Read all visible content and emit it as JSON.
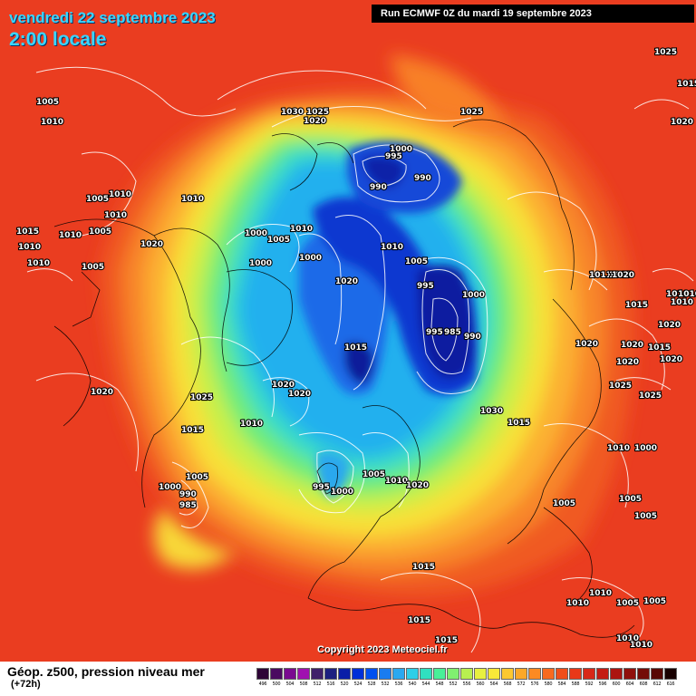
{
  "header": {
    "date": "vendredi 22 septembre 2023",
    "time": "2:00 locale",
    "run": "Run ECMWF 0Z du mardi 19 septembre 2023"
  },
  "copyright": "Copyright 2023 Meteociel.fr",
  "footer": {
    "title": "Géop. z500, pression niveau mer",
    "subtitle": "(+72h)"
  },
  "legend": {
    "ticks": [
      "496",
      "500",
      "504",
      "508",
      "512",
      "516",
      "520",
      "524",
      "528",
      "532",
      "536",
      "540",
      "544",
      "548",
      "552",
      "556",
      "560",
      "564",
      "568",
      "572",
      "576",
      "580",
      "584",
      "588",
      "592",
      "596",
      "600",
      "604",
      "608",
      "612",
      "616"
    ],
    "colors": [
      "#2e0536",
      "#4a0a60",
      "#7a0a90",
      "#a010b0",
      "#40206a",
      "#1c2080",
      "#0a1ea8",
      "#0030d8",
      "#0050f0",
      "#1a7cf0",
      "#2aa8f0",
      "#2ecee8",
      "#30e0c0",
      "#48f098",
      "#80f070",
      "#b8f050",
      "#e8f040",
      "#f8e838",
      "#fcc830",
      "#fca828",
      "#fc8a22",
      "#f86a1e",
      "#f04e1a",
      "#e83818",
      "#d82818",
      "#c41c14",
      "#ac1410",
      "#90100c",
      "#740c08",
      "#580804",
      "#180000"
    ]
  },
  "pressure_labels": [
    "1005",
    "1010",
    "1030",
    "1025",
    "1020",
    "1005",
    "1010",
    "1010",
    "1010",
    "1010",
    "1005",
    "1010",
    "1005",
    "1015",
    "1010",
    "1020",
    "1000",
    "1005",
    "1010",
    "1000",
    "1000",
    "995",
    "990",
    "990",
    "1000",
    "1010",
    "1005",
    "1020",
    "995",
    "1000",
    "995",
    "985",
    "990",
    "1015",
    "1020",
    "1011",
    "1015",
    "1010",
    "1010",
    "1015",
    "1020",
    "1020",
    "1020",
    "1015",
    "1020",
    "1020",
    "1025",
    "1025",
    "1030",
    "1015",
    "1025",
    "1020",
    "1020",
    "1015",
    "1010",
    "1000",
    "1010",
    "1005",
    "1000",
    "990",
    "985",
    "995",
    "1000",
    "1005",
    "1010",
    "1020",
    "1005",
    "1005",
    "1005",
    "1010",
    "1010",
    "1005",
    "1005",
    "1015",
    "1015",
    "1015",
    "1010",
    "1010",
    "1020",
    "1025",
    "1025",
    "1010",
    "1020",
    "1015"
  ]
}
